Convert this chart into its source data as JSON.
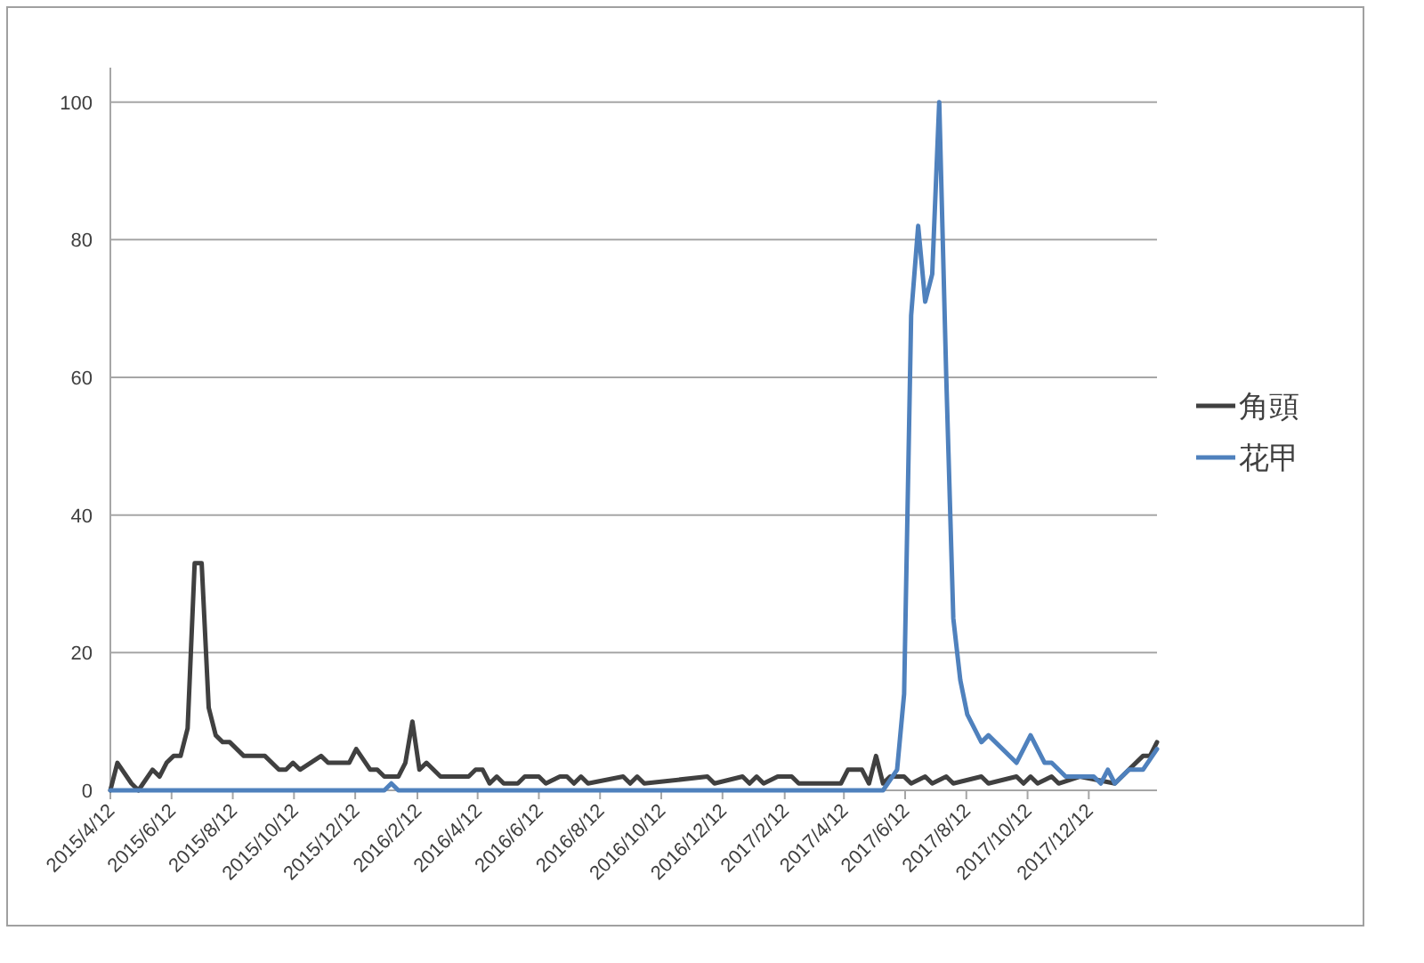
{
  "chart_data": {
    "type": "line",
    "ylim": [
      0,
      105
    ],
    "yticks": [
      0,
      20,
      40,
      60,
      80,
      100
    ],
    "grid": "y",
    "legend": "right",
    "xlim": [
      "2015-04-12",
      "2018-02-18"
    ],
    "xticks": [
      {
        "value": "2015-04-12",
        "label": "2015/4/12"
      },
      {
        "value": "2015-06-12",
        "label": "2015/6/12"
      },
      {
        "value": "2015-08-12",
        "label": "2015/8/12"
      },
      {
        "value": "2015-10-12",
        "label": "2015/10/12"
      },
      {
        "value": "2015-12-12",
        "label": "2015/12/12"
      },
      {
        "value": "2016-02-12",
        "label": "2016/2/12"
      },
      {
        "value": "2016-04-12",
        "label": "2016/4/12"
      },
      {
        "value": "2016-06-12",
        "label": "2016/6/12"
      },
      {
        "value": "2016-08-12",
        "label": "2016/8/12"
      },
      {
        "value": "2016-10-12",
        "label": "2016/10/12"
      },
      {
        "value": "2016-12-12",
        "label": "2016/12/12"
      },
      {
        "value": "2017-02-12",
        "label": "2017/2/12"
      },
      {
        "value": "2017-04-12",
        "label": "2017/4/12"
      },
      {
        "value": "2017-06-12",
        "label": "2017/6/12"
      },
      {
        "value": "2017-08-12",
        "label": "2017/8/12"
      },
      {
        "value": "2017-10-12",
        "label": "2017/10/12"
      },
      {
        "value": "2017-12-12",
        "label": "2017/12/12"
      }
    ],
    "series": [
      {
        "name": "角頭",
        "color": "#404040",
        "x": [
          "2015-04-12",
          "2015-04-19",
          "2015-05-03",
          "2015-05-10",
          "2015-05-24",
          "2015-05-31",
          "2015-06-07",
          "2015-06-14",
          "2015-06-21",
          "2015-06-28",
          "2015-07-05",
          "2015-07-12",
          "2015-07-19",
          "2015-07-26",
          "2015-08-02",
          "2015-08-09",
          "2015-08-16",
          "2015-08-23",
          "2015-09-13",
          "2015-09-27",
          "2015-10-04",
          "2015-10-11",
          "2015-10-18",
          "2015-11-08",
          "2015-11-15",
          "2015-12-06",
          "2015-12-13",
          "2015-12-27",
          "2016-01-03",
          "2016-01-10",
          "2016-01-24",
          "2016-01-31",
          "2016-02-07",
          "2016-02-14",
          "2016-02-21",
          "2016-03-06",
          "2016-04-03",
          "2016-04-10",
          "2016-04-17",
          "2016-04-24",
          "2016-05-01",
          "2016-05-08",
          "2016-05-22",
          "2016-05-29",
          "2016-06-12",
          "2016-06-19",
          "2016-07-03",
          "2016-07-10",
          "2016-07-17",
          "2016-07-24",
          "2016-07-31",
          "2016-09-04",
          "2016-09-11",
          "2016-09-18",
          "2016-09-25",
          "2016-11-27",
          "2016-12-04",
          "2017-01-01",
          "2017-01-08",
          "2017-01-15",
          "2017-01-22",
          "2017-02-05",
          "2017-02-19",
          "2017-02-26",
          "2017-04-09",
          "2017-04-16",
          "2017-04-30",
          "2017-05-07",
          "2017-05-14",
          "2017-05-21",
          "2017-05-28",
          "2017-06-11",
          "2017-06-18",
          "2017-07-02",
          "2017-07-09",
          "2017-07-23",
          "2017-07-30",
          "2017-08-27",
          "2017-09-03",
          "2017-10-01",
          "2017-10-08",
          "2017-10-15",
          "2017-10-22",
          "2017-11-05",
          "2017-11-12",
          "2017-12-03",
          "2018-01-07",
          "2018-01-21",
          "2018-02-04",
          "2018-02-11",
          "2018-02-18"
        ],
        "values": [
          0,
          4,
          1,
          0,
          3,
          2,
          4,
          5,
          5,
          9,
          33,
          33,
          12,
          8,
          7,
          7,
          6,
          5,
          5,
          3,
          3,
          4,
          3,
          5,
          4,
          4,
          6,
          3,
          3,
          2,
          2,
          4,
          10,
          3,
          4,
          2,
          2,
          3,
          3,
          1,
          2,
          1,
          1,
          2,
          2,
          1,
          2,
          2,
          1,
          2,
          1,
          2,
          1,
          2,
          1,
          2,
          1,
          2,
          1,
          2,
          1,
          2,
          2,
          1,
          1,
          3,
          3,
          1,
          5,
          1,
          2,
          2,
          1,
          2,
          1,
          2,
          1,
          2,
          1,
          2,
          1,
          2,
          1,
          2,
          1,
          2,
          1,
          3,
          5,
          5,
          7
        ]
      },
      {
        "name": "花甲",
        "color": "#4f81bd",
        "x": [
          "2015-04-12",
          "2016-01-10",
          "2016-01-17",
          "2016-01-24",
          "2017-05-21",
          "2017-06-04",
          "2017-06-11",
          "2017-06-18",
          "2017-06-25",
          "2017-07-02",
          "2017-07-09",
          "2017-07-16",
          "2017-07-23",
          "2017-07-30",
          "2017-08-06",
          "2017-08-13",
          "2017-08-27",
          "2017-09-03",
          "2017-10-01",
          "2017-10-15",
          "2017-10-29",
          "2017-11-05",
          "2017-11-19",
          "2017-12-17",
          "2017-12-24",
          "2017-12-31",
          "2018-01-07",
          "2018-01-21",
          "2018-02-04",
          "2018-02-18"
        ],
        "values": [
          0,
          0,
          1,
          0,
          0,
          3,
          14,
          69,
          82,
          71,
          75,
          100,
          60,
          25,
          16,
          11,
          7,
          8,
          4,
          8,
          4,
          4,
          2,
          2,
          1,
          3,
          1,
          3,
          3,
          6
        ]
      }
    ]
  }
}
